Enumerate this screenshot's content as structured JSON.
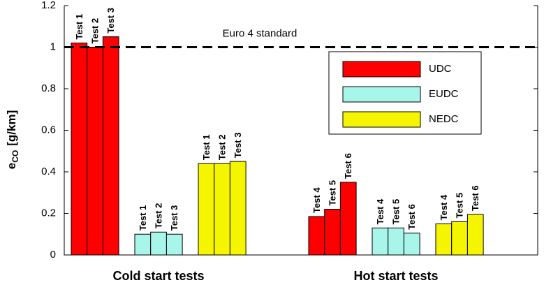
{
  "chart_data": {
    "type": "grouped_bar",
    "ylabel": {
      "main": "e",
      "sub": "CO",
      "unit": "[g/km]"
    },
    "ylim": [
      0,
      1.2
    ],
    "yticks": [
      0,
      0.2,
      0.4,
      0.6,
      0.8,
      1,
      1.2
    ],
    "reference_line": {
      "value": 1,
      "label": "Euro 4 standard"
    },
    "groups": [
      {
        "name": "Cold start tests",
        "test_labels": [
          "Test 1",
          "Test 2",
          "Test 3"
        ]
      },
      {
        "name": "Hot start tests",
        "test_labels": [
          "Test 4",
          "Test 5",
          "Test 6"
        ]
      }
    ],
    "series": [
      {
        "name": "UDC",
        "color": "#ff0000",
        "values": [
          [
            1.02,
            1.0,
            1.05
          ],
          [
            0.185,
            0.22,
            0.35
          ]
        ]
      },
      {
        "name": "EUDC",
        "color": "#a8f5ea",
        "values": [
          [
            0.1,
            0.11,
            0.1
          ],
          [
            0.13,
            0.13,
            0.105
          ]
        ]
      },
      {
        "name": "NEDC",
        "color": "#f5f500",
        "values": [
          [
            0.44,
            0.44,
            0.45
          ],
          [
            0.15,
            0.16,
            0.195
          ]
        ]
      }
    ]
  }
}
